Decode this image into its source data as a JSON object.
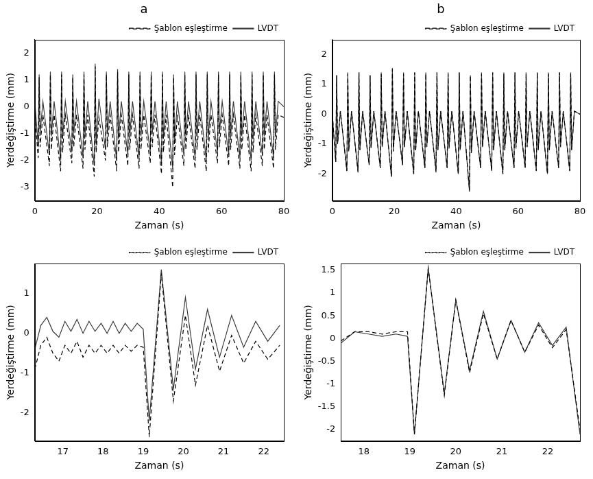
{
  "chart_data": [
    {
      "type": "line",
      "title": "a",
      "x_label": "Zaman (s)",
      "y_label": "Yerdeğiştirme (mm)",
      "xlim": [
        0,
        80
      ],
      "xticks": [
        0,
        20,
        40,
        60,
        80
      ],
      "ylim": [
        -3.5,
        2.5
      ],
      "yticks": [
        -3,
        -2,
        -1,
        0,
        1,
        2
      ],
      "grid": false,
      "legend": "top right",
      "x": [
        0,
        1.1,
        1.4,
        1.7,
        2.6,
        4.7,
        5.0,
        5.3,
        6.2,
        8.3,
        8.6,
        8.9,
        9.8,
        11.9,
        12.2,
        12.5,
        13.4,
        15.5,
        15.8,
        16.1,
        17.0,
        19.1,
        19.4,
        19.7,
        20.6,
        22.7,
        23.0,
        23.3,
        24.2,
        26.3,
        26.6,
        26.9,
        27.8,
        29.9,
        30.2,
        30.5,
        31.4,
        33.5,
        33.8,
        34.1,
        35.0,
        37.1,
        37.4,
        37.7,
        38.6,
        40.7,
        41.0,
        41.3,
        42.2,
        44.3,
        44.6,
        44.9,
        45.8,
        47.9,
        48.2,
        48.5,
        49.4,
        51.5,
        51.8,
        52.1,
        53.0,
        55.1,
        55.4,
        55.7,
        56.6,
        58.7,
        59.0,
        59.3,
        60.2,
        62.3,
        62.6,
        62.9,
        63.8,
        65.9,
        66.2,
        66.5,
        67.4,
        69.5,
        69.8,
        70.1,
        71.0,
        73.1,
        73.4,
        73.7,
        74.6,
        76.7,
        77.0,
        77.3,
        78.2,
        80
      ],
      "series": [
        {
          "name": "Şablon eşleştirme",
          "color": "#000000",
          "line_style": "dashed",
          "values": [
            -0.3,
            -1.9,
            1.1,
            -1.5,
            -0.3,
            -2.2,
            1.2,
            -1.6,
            -0.3,
            -2.4,
            1.2,
            -1.7,
            -0.3,
            -2.1,
            1.1,
            -1.5,
            -0.3,
            -2.3,
            1.2,
            -1.6,
            -0.3,
            -2.6,
            1.5,
            -1.7,
            -0.4,
            -2.0,
            1.2,
            -1.5,
            -0.3,
            -2.4,
            1.3,
            -1.7,
            -0.3,
            -2.2,
            1.2,
            -1.6,
            -0.3,
            -2.3,
            1.2,
            -1.6,
            -0.3,
            -2.1,
            1.2,
            -1.5,
            -0.3,
            -2.5,
            1.2,
            -1.7,
            -0.3,
            -3.0,
            1.1,
            -1.8,
            -0.3,
            -2.2,
            1.2,
            -1.6,
            -0.3,
            -2.3,
            1.2,
            -1.6,
            -0.3,
            -2.4,
            1.2,
            -1.7,
            -0.3,
            -2.1,
            1.2,
            -1.5,
            -0.3,
            -2.2,
            1.2,
            -1.6,
            -0.3,
            -2.3,
            1.2,
            -1.6,
            -0.3,
            -2.4,
            1.2,
            -1.7,
            -0.3,
            -2.2,
            1.2,
            -1.6,
            -0.3,
            -2.3,
            1.2,
            -1.6,
            -0.3,
            -0.4
          ]
        },
        {
          "name": "LVDT",
          "color": "#3a3a3a",
          "line_style": "solid",
          "values": [
            0.2,
            -1.5,
            1.2,
            -1.0,
            0.2,
            -1.8,
            1.3,
            -1.1,
            0.2,
            -2.0,
            1.3,
            -1.2,
            0.2,
            -1.7,
            1.2,
            -1.0,
            0.2,
            -1.9,
            1.3,
            -1.1,
            0.2,
            -2.2,
            1.6,
            -1.4,
            0.3,
            -1.6,
            1.3,
            -1.0,
            0.2,
            -2.0,
            1.4,
            -1.2,
            0.2,
            -1.8,
            1.3,
            -1.1,
            0.2,
            -1.9,
            1.3,
            -1.1,
            0.2,
            -1.7,
            1.3,
            -1.0,
            0.2,
            -2.1,
            1.3,
            -1.2,
            0.2,
            -2.3,
            1.2,
            -1.3,
            0.2,
            -1.8,
            1.3,
            -1.1,
            0.2,
            -1.9,
            1.3,
            -1.1,
            0.2,
            -2.0,
            1.3,
            -1.2,
            0.2,
            -1.7,
            1.3,
            -1.0,
            0.2,
            -1.8,
            1.3,
            -1.1,
            0.2,
            -1.9,
            1.3,
            -1.1,
            0.2,
            -2.0,
            1.3,
            -1.2,
            0.2,
            -1.8,
            1.3,
            -1.1,
            0.2,
            -1.9,
            1.3,
            -1.1,
            0.2,
            0.0
          ]
        }
      ]
    },
    {
      "type": "line",
      "title": "b",
      "x_label": "Zaman (s)",
      "y_label": "Yerdeğiştirme (mm)",
      "xlim": [
        0,
        80
      ],
      "xticks": [
        0,
        20,
        40,
        60,
        80
      ],
      "ylim": [
        -2.9,
        2.5
      ],
      "yticks": [
        -2,
        -1,
        0,
        1,
        2
      ],
      "grid": false,
      "legend": "top right",
      "x": [
        0,
        1.1,
        1.4,
        1.7,
        2.6,
        4.7,
        5.0,
        5.3,
        6.2,
        8.3,
        8.6,
        8.9,
        9.8,
        11.9,
        12.2,
        12.5,
        13.4,
        15.5,
        15.8,
        16.1,
        17.0,
        19.1,
        19.4,
        19.7,
        20.6,
        22.7,
        23.0,
        23.3,
        24.2,
        26.3,
        26.6,
        26.9,
        27.8,
        29.9,
        30.2,
        30.5,
        31.4,
        33.5,
        33.8,
        34.1,
        35.0,
        37.1,
        37.4,
        37.7,
        38.6,
        40.7,
        41.0,
        41.3,
        42.2,
        44.3,
        44.6,
        44.9,
        45.8,
        47.9,
        48.2,
        48.5,
        49.4,
        51.5,
        51.8,
        52.1,
        53.0,
        55.1,
        55.4,
        55.7,
        56.6,
        58.7,
        59.0,
        59.3,
        60.2,
        62.3,
        62.6,
        62.9,
        63.8,
        65.9,
        66.2,
        66.5,
        67.4,
        69.5,
        69.8,
        70.1,
        71.0,
        73.1,
        73.4,
        73.7,
        74.6,
        76.7,
        77.0,
        77.3,
        78.2,
        80
      ],
      "series": [
        {
          "name": "Şablon eşleştirme",
          "color": "#000000",
          "line_style": "dashed",
          "values": [
            0.0,
            -1.6,
            1.3,
            -1.0,
            0.1,
            -1.9,
            1.35,
            -1.25,
            0.1,
            -1.95,
            1.4,
            -1.2,
            0.1,
            -1.7,
            1.3,
            -1.15,
            0.1,
            -1.8,
            1.35,
            -1.1,
            0.1,
            -2.1,
            1.5,
            -1.25,
            0.1,
            -1.7,
            1.35,
            -1.1,
            0.1,
            -2.0,
            1.4,
            -1.25,
            0.1,
            -1.8,
            1.35,
            -1.1,
            0.1,
            -1.95,
            1.4,
            -1.2,
            0.1,
            -1.8,
            1.35,
            -1.15,
            0.1,
            -2.0,
            1.4,
            -1.2,
            0.1,
            -2.55,
            1.3,
            -1.3,
            0.1,
            -1.8,
            1.35,
            -1.1,
            0.1,
            -1.9,
            1.4,
            -1.2,
            0.1,
            -2.0,
            1.35,
            -1.2,
            0.1,
            -1.8,
            1.4,
            -1.15,
            0.1,
            -1.8,
            1.35,
            -1.1,
            0.1,
            -1.9,
            1.4,
            -1.2,
            0.1,
            -2.0,
            1.35,
            -1.2,
            0.1,
            -1.8,
            1.4,
            -1.1,
            0.1,
            -1.9,
            1.35,
            -1.2,
            0.1,
            0.0
          ]
        },
        {
          "name": "LVDT",
          "color": "#3a3a3a",
          "line_style": "solid",
          "values": [
            0.0,
            -1.6,
            1.3,
            -1.0,
            0.1,
            -1.9,
            1.4,
            -1.2,
            0.1,
            -1.9,
            1.4,
            -1.2,
            0.1,
            -1.7,
            1.3,
            -1.1,
            0.1,
            -1.8,
            1.4,
            -1.1,
            0.1,
            -2.1,
            1.55,
            -1.2,
            0.1,
            -1.7,
            1.4,
            -1.1,
            0.1,
            -2.0,
            1.4,
            -1.2,
            0.1,
            -1.8,
            1.4,
            -1.1,
            0.1,
            -1.9,
            1.4,
            -1.2,
            0.1,
            -1.8,
            1.4,
            -1.1,
            0.1,
            -2.0,
            1.4,
            -1.2,
            0.1,
            -2.6,
            1.3,
            -1.3,
            0.1,
            -1.8,
            1.4,
            -1.1,
            0.1,
            -1.9,
            1.4,
            -1.2,
            0.1,
            -2.0,
            1.4,
            -1.2,
            0.1,
            -1.8,
            1.4,
            -1.1,
            0.1,
            -1.8,
            1.4,
            -1.1,
            0.1,
            -1.9,
            1.4,
            -1.2,
            0.1,
            -2.0,
            1.4,
            -1.2,
            0.1,
            -1.8,
            1.4,
            -1.1,
            0.1,
            -1.9,
            1.4,
            -1.2,
            0.1,
            0.0
          ]
        }
      ]
    },
    {
      "type": "line",
      "x_label": "Zaman (s)",
      "y_label": "Yerdeğiştirme (mm)",
      "xlim": [
        16.3,
        22.5
      ],
      "xticks": [
        17,
        18,
        19,
        20,
        21,
        22
      ],
      "ylim": [
        -2.7,
        1.75
      ],
      "yticks": [
        -2,
        -1,
        0,
        1
      ],
      "grid": false,
      "legend": "top right",
      "x": [
        16.3,
        16.45,
        16.6,
        16.75,
        16.9,
        17.05,
        17.2,
        17.35,
        17.5,
        17.65,
        17.8,
        17.95,
        18.1,
        18.25,
        18.4,
        18.55,
        18.7,
        18.85,
        19.0,
        19.15,
        19.45,
        19.75,
        20.05,
        20.3,
        20.6,
        20.9,
        21.2,
        21.5,
        21.8,
        22.1,
        22.4
      ],
      "series": [
        {
          "name": "Şablon eşleştirme",
          "color": "#000000",
          "line_style": "dashed",
          "values": [
            -0.9,
            -0.3,
            -0.1,
            -0.5,
            -0.7,
            -0.3,
            -0.5,
            -0.2,
            -0.6,
            -0.3,
            -0.5,
            -0.3,
            -0.5,
            -0.3,
            -0.5,
            -0.3,
            -0.45,
            -0.3,
            -0.35,
            -2.6,
            1.5,
            -1.7,
            0.45,
            -1.3,
            0.2,
            -0.95,
            -0.05,
            -0.75,
            -0.2,
            -0.65,
            -0.3
          ]
        },
        {
          "name": "LVDT",
          "color": "#3a3a3a",
          "line_style": "solid",
          "values": [
            -0.4,
            0.2,
            0.4,
            0.05,
            -0.1,
            0.3,
            0.05,
            0.35,
            0.0,
            0.3,
            0.05,
            0.25,
            0.0,
            0.3,
            0.0,
            0.25,
            0.05,
            0.25,
            0.1,
            -2.2,
            1.6,
            -1.4,
            0.9,
            -0.9,
            0.6,
            -0.6,
            0.45,
            -0.35,
            0.3,
            -0.2,
            0.2
          ]
        }
      ]
    },
    {
      "type": "line",
      "x_label": "Zaman (s)",
      "y_label": "Yerdeğiştirme (mm)",
      "xlim": [
        17.5,
        22.7
      ],
      "xticks": [
        18,
        19,
        20,
        21,
        22
      ],
      "ylim": [
        -2.25,
        1.65
      ],
      "yticks": [
        -2,
        -1.5,
        -1,
        -0.5,
        0,
        0.5,
        1,
        1.5
      ],
      "grid": false,
      "legend": "top right",
      "x": [
        17.5,
        17.8,
        18.1,
        18.4,
        18.7,
        18.95,
        19.1,
        19.4,
        19.75,
        20.0,
        20.3,
        20.6,
        20.9,
        21.2,
        21.5,
        21.8,
        22.1,
        22.4,
        22.7
      ],
      "series": [
        {
          "name": "Şablon eşleştirme",
          "color": "#000000",
          "line_style": "dashed",
          "values": [
            -0.05,
            0.15,
            0.15,
            0.1,
            0.15,
            0.15,
            -2.1,
            1.55,
            -1.25,
            0.85,
            -0.75,
            0.55,
            -0.45,
            0.4,
            -0.3,
            0.3,
            -0.2,
            0.2,
            -2.0
          ]
        },
        {
          "name": "LVDT",
          "color": "#3a3a3a",
          "line_style": "solid",
          "values": [
            -0.1,
            0.15,
            0.1,
            0.05,
            0.1,
            0.05,
            -2.1,
            1.55,
            -1.2,
            0.85,
            -0.7,
            0.6,
            -0.45,
            0.4,
            -0.3,
            0.35,
            -0.15,
            0.25,
            -2.1
          ]
        }
      ]
    }
  ]
}
